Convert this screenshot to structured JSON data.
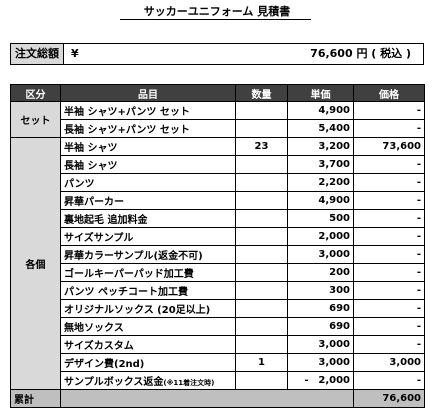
{
  "title": "サッカーユニフォーム 見積書",
  "total": {
    "label": "注文総額",
    "yen": "¥",
    "amount": "76,600 円 ( 税込 )"
  },
  "headers": {
    "category": "区分",
    "item": "品目",
    "qty": "数量",
    "price": "単価",
    "amount": "価格"
  },
  "groups": [
    {
      "name": "セット",
      "rows": [
        {
          "item": "半袖 シャツ+パンツ セット",
          "qty": "",
          "price": "4,900",
          "amount": "-"
        },
        {
          "item": "長袖 シャツ+パンツ セット",
          "qty": "",
          "price": "5,400",
          "amount": "-"
        }
      ]
    },
    {
      "name": "各個",
      "rows": [
        {
          "item": "半袖 シャツ",
          "qty": "23",
          "price": "3,200",
          "amount": "73,600"
        },
        {
          "item": "長袖 シャツ",
          "qty": "",
          "price": "3,700",
          "amount": "-"
        },
        {
          "item": "パンツ",
          "qty": "",
          "price": "2,200",
          "amount": "-"
        },
        {
          "item": "昇華パーカー",
          "qty": "",
          "price": "4,900",
          "amount": "-"
        },
        {
          "item": "裏地起毛 追加料金",
          "qty": "",
          "price": "500",
          "amount": "-"
        },
        {
          "item": "サイズサンプル",
          "qty": "",
          "price": "2,000",
          "amount": "-"
        },
        {
          "item": "昇華カラーサンプル(返金不可)",
          "qty": "",
          "price": "3,000",
          "amount": "-"
        },
        {
          "item": "ゴールキーパーパッド加工費",
          "qty": "",
          "price": "200",
          "amount": "-"
        },
        {
          "item": "パンツ ペッチコート加工費",
          "qty": "",
          "price": "300",
          "amount": "-"
        },
        {
          "item": "オリジナルソックス (20足以上)",
          "qty": "",
          "price": "690",
          "amount": "-"
        },
        {
          "item": "無地ソックス",
          "qty": "",
          "price": "690",
          "amount": "-"
        },
        {
          "item": "サイズカスタム",
          "qty": "",
          "price": "3,000",
          "amount": "-"
        },
        {
          "item": "デザイン費(2nd)",
          "qty": "1",
          "price": "3,000",
          "amount": "3,000"
        },
        {
          "item": "サンプルボックス返金",
          "note": "(※11着注文時)",
          "qty": "",
          "pricePrefix": "-",
          "price": "2,000",
          "amount": "-"
        }
      ]
    }
  ],
  "sum": {
    "label": "累計",
    "amount": "76,600"
  }
}
